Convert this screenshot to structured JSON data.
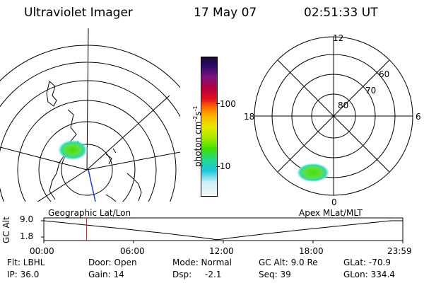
{
  "header": {
    "title": "Ultraviolet Imager",
    "date": "17 May 07",
    "time": "02:51:33 UT"
  },
  "colorbar": {
    "label": "photon cm-2s-1",
    "ticks": [
      "100",
      "10"
    ],
    "colors": [
      "#1a0a33",
      "#2a0a66",
      "#7a1380",
      "#b00040",
      "#e01020",
      "#ff6a00",
      "#ffb000",
      "#e8e800",
      "#a8e800",
      "#40e000",
      "#20d890",
      "#20c8e0",
      "#c8f0f8",
      "#f8f8f8"
    ]
  },
  "polar_plot": {
    "labels": {
      "top": "12",
      "left": "18",
      "right": "6",
      "bottom": "0",
      "lat60": "60",
      "lat70": "70",
      "lat80": "80"
    }
  },
  "left_label": "Geographic Lat/Lon",
  "right_label": "Apex MLat/MLT",
  "altitude_plot": {
    "ylabel": "GC Alt",
    "yticks": [
      "9.0",
      "1.8"
    ],
    "xticks": [
      "00:00",
      "06:00",
      "12:00",
      "18:00",
      "23:59"
    ],
    "marker_time_hours": 2.86,
    "marker_color": "#d02020"
  },
  "info": {
    "filter": "Flt: LBHL",
    "ip": "IP: 36.0",
    "door": "Door: Open",
    "gain": "Gain: 14",
    "mode": "Mode: Normal",
    "dsp_label": "Dsp:",
    "dsp_value": "-2.1",
    "gc_alt": "GC Alt: 9.0 Re",
    "seq": "Seq: 39",
    "glat": "GLat: -70.9",
    "glon": "GLon: 334.4"
  }
}
